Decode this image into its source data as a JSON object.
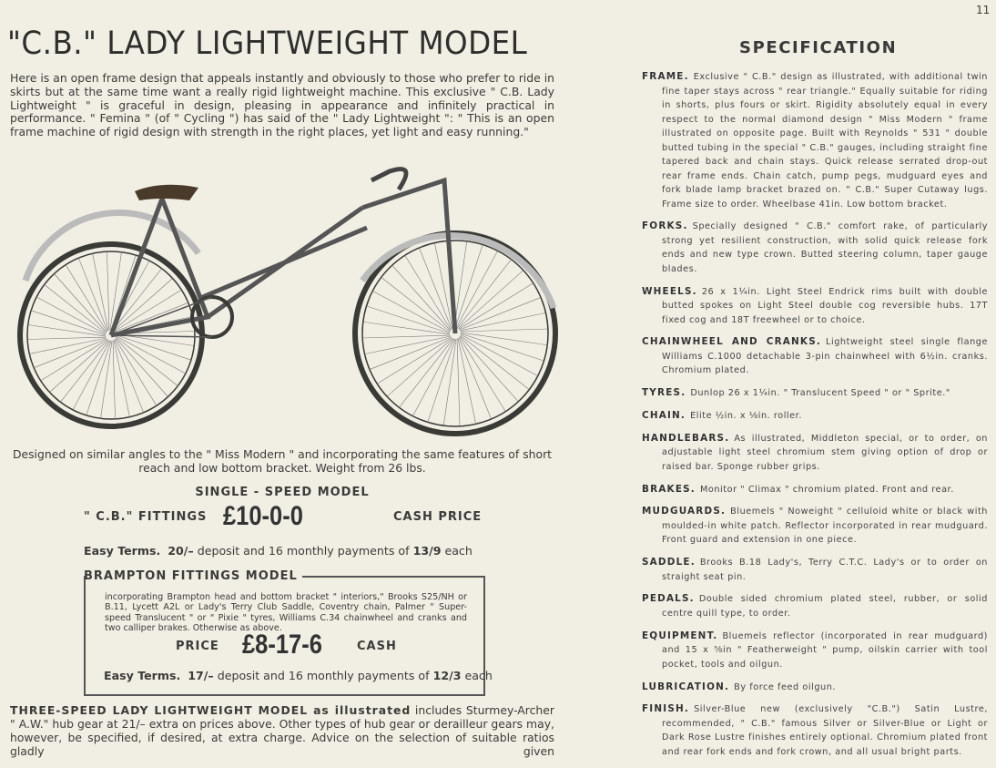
{
  "page_number": "11",
  "title": "\"C.B.\" LADY LIGHTWEIGHT MODEL",
  "intro": "Here is an open frame design that appeals instantly and obviously to those who prefer to ride in skirts but at the same time want a really rigid lightweight machine.  This exclusive \" C.B. Lady Lightweight \" is graceful in design, pleasing in appearance and infinitely practical in performance. \" Femina \" (of \" Cycling \") has said of the \" Lady Lightweight \": \" This is an open frame machine of rigid design with strength in the right places, yet light and easy running.\"",
  "caption": "Designed on similar angles to the \" Miss Modern \" and incorporating the same features of short reach and low bottom bracket.  Weight from 26 lbs.",
  "single_speed": {
    "title": "SINGLE - SPEED  MODEL",
    "fittings": "\" C.B.\"  FITTINGS",
    "price": "£10-0-0",
    "cash": "CASH   PRICE",
    "terms_label": "Easy Terms.",
    "terms_deposit": "20/–",
    "terms_mid": "deposit and 16 monthly payments of",
    "terms_payment": "13/9",
    "terms_end": "each"
  },
  "brampton": {
    "title": "BRAMPTON FITTINGS MODEL",
    "text": "incorporating Brampton head and bottom bracket \" interiors,\" Brooks S25/NH or B.11, Lycett A2L or Lady's Terry Club Saddle, Coventry chain, Palmer \" Super-speed Translucent \" or \" Pixie \" tyres, Williams C.34 chainwheel and cranks and two calliper brakes.  Otherwise as above.",
    "price_label": "PRICE",
    "price": "£8-17-6",
    "cash": "CASH",
    "terms_label": "Easy Terms.",
    "terms_deposit": "17/–",
    "terms_mid": "deposit and 16 monthly payments of",
    "terms_payment": "12/3",
    "terms_end": "each"
  },
  "three_speed": {
    "lead": "THREE-SPEED LADY LIGHTWEIGHT  MODEL as illustrated",
    "text": "includes Sturmey-Archer \" A.W.\" hub gear at 21/– extra on prices above.  Other types of hub gear or derailleur gears may, however, be specified, if desired, at extra charge.  Advice on the selection of suitable ratios gladly given"
  },
  "specification": {
    "title": "SPECIFICATION",
    "items": [
      {
        "label": "FRAME.",
        "text": "Exclusive \" C.B.\" design as illustrated, with additional twin fine taper stays across \" rear triangle.\"  Equally suitable for riding in shorts, plus fours or skirt.  Rigidity absolutely equal in every respect to the normal diamond design \" Miss Modern \" frame illustrated on opposite page.  Built with Reynolds \" 531 \" double butted tubing in the special \" C.B.\" gauges, including straight fine tapered back and chain stays. Quick release serrated drop-out rear frame ends.  Chain catch, pump pegs, mudguard eyes and fork blade lamp bracket brazed on.  \" C.B.\" Super Cutaway lugs.  Frame size to order.  Wheelbase 41in.  Low bottom bracket."
      },
      {
        "label": "FORKS.",
        "text": "Specially designed \" C.B.\" comfort rake, of particularly strong yet resilient construction, with solid quick release fork ends and new type crown.  Butted steering column, taper gauge blades."
      },
      {
        "label": "WHEELS.",
        "text": "26 x 1¼in. Light Steel Endrick rims built with double butted spokes on Light Steel double cog reversible hubs.  17T fixed cog and 18T freewheel or to choice."
      },
      {
        "label": "CHAINWHEEL AND CRANKS.",
        "text": "Lightweight steel single flange Williams C.1000 detachable 3-pin chainwheel with 6½in. cranks.  Chromium plated."
      },
      {
        "label": "TYRES.",
        "text": "Dunlop 26 x 1¼in. \" Translucent Speed \" or \" Sprite.\""
      },
      {
        "label": "CHAIN.",
        "text": "Elite ½in. x ⅛in. roller."
      },
      {
        "label": "HANDLEBARS.",
        "text": "As illustrated, Middleton special, or to order, on adjustable light steel chromium stem giving option of drop or raised bar.  Sponge rubber grips."
      },
      {
        "label": "BRAKES.",
        "text": "Monitor \" Climax \" chromium plated.  Front and rear."
      },
      {
        "label": "MUDGUARDS.",
        "text": "Bluemels \" Noweight \" celluloid white or black with moulded-in white patch.  Reflector incorporated in rear mudguard.  Front guard and extension in one piece."
      },
      {
        "label": "SADDLE.",
        "text": "Brooks B.18 Lady's, Terry C.T.C. Lady's or to order on straight seat pin."
      },
      {
        "label": "PEDALS.",
        "text": "Double sided chromium plated steel, rubber, or solid centre quill type, to order."
      },
      {
        "label": "EQUIPMENT.",
        "text": "Bluemels reflector (incorporated in rear mudguard) and 15 x ⅝in \" Featherweight \" pump, oilskin carrier with tool pocket, tools and oilgun."
      },
      {
        "label": "LUBRICATION.",
        "text": "By force feed oilgun."
      },
      {
        "label": "FINISH.",
        "text": "Silver-Blue new (exclusively \"C.B.\") Satin Lustre, recommended, \" C.B.\" famous Silver or Silver-Blue or Light or Dark Rose Lustre finishes entirely optional.  Chromium plated front and rear fork ends and fork crown, and all usual bright parts."
      }
    ]
  },
  "colors": {
    "paper": "#f1eee4",
    "ink": "#3b3b38"
  }
}
